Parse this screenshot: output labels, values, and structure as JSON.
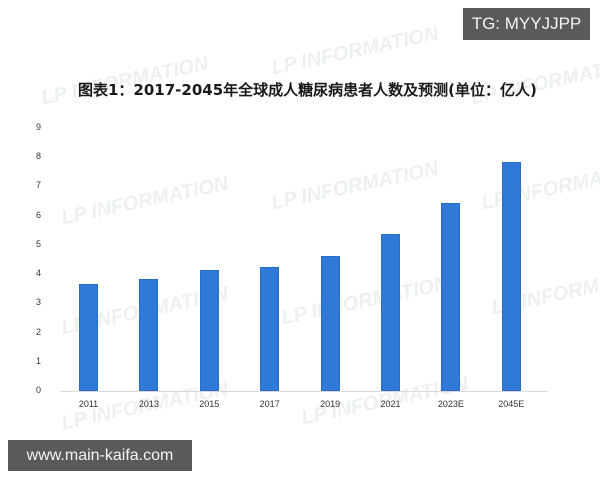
{
  "badges": {
    "top_right": "TG: MYYJJPP",
    "bottom_left": "www.main-kaifa.com"
  },
  "watermark_text": "LP INFORMATION",
  "colors": {
    "bar": "#2f7ad8",
    "badge_bg": "#5a5a5a",
    "axis": "#d9d9d9"
  },
  "chart_data": {
    "type": "bar",
    "title": "图表1：2017-2045年全球成人糖尿病患者人数及预测(单位：亿人)",
    "xlabel": "",
    "ylabel": "",
    "ylim": [
      0,
      9
    ],
    "yticks": [
      "0",
      "1",
      "2",
      "3",
      "4",
      "5",
      "6",
      "7",
      "8",
      "9"
    ],
    "categories": [
      "2011",
      "2013",
      "2015",
      "2017",
      "2019",
      "2021",
      "2023E",
      "2045E"
    ],
    "values": [
      3.66,
      3.82,
      4.15,
      4.25,
      4.63,
      5.37,
      6.43,
      7.83
    ],
    "grid": false,
    "legend": null
  }
}
